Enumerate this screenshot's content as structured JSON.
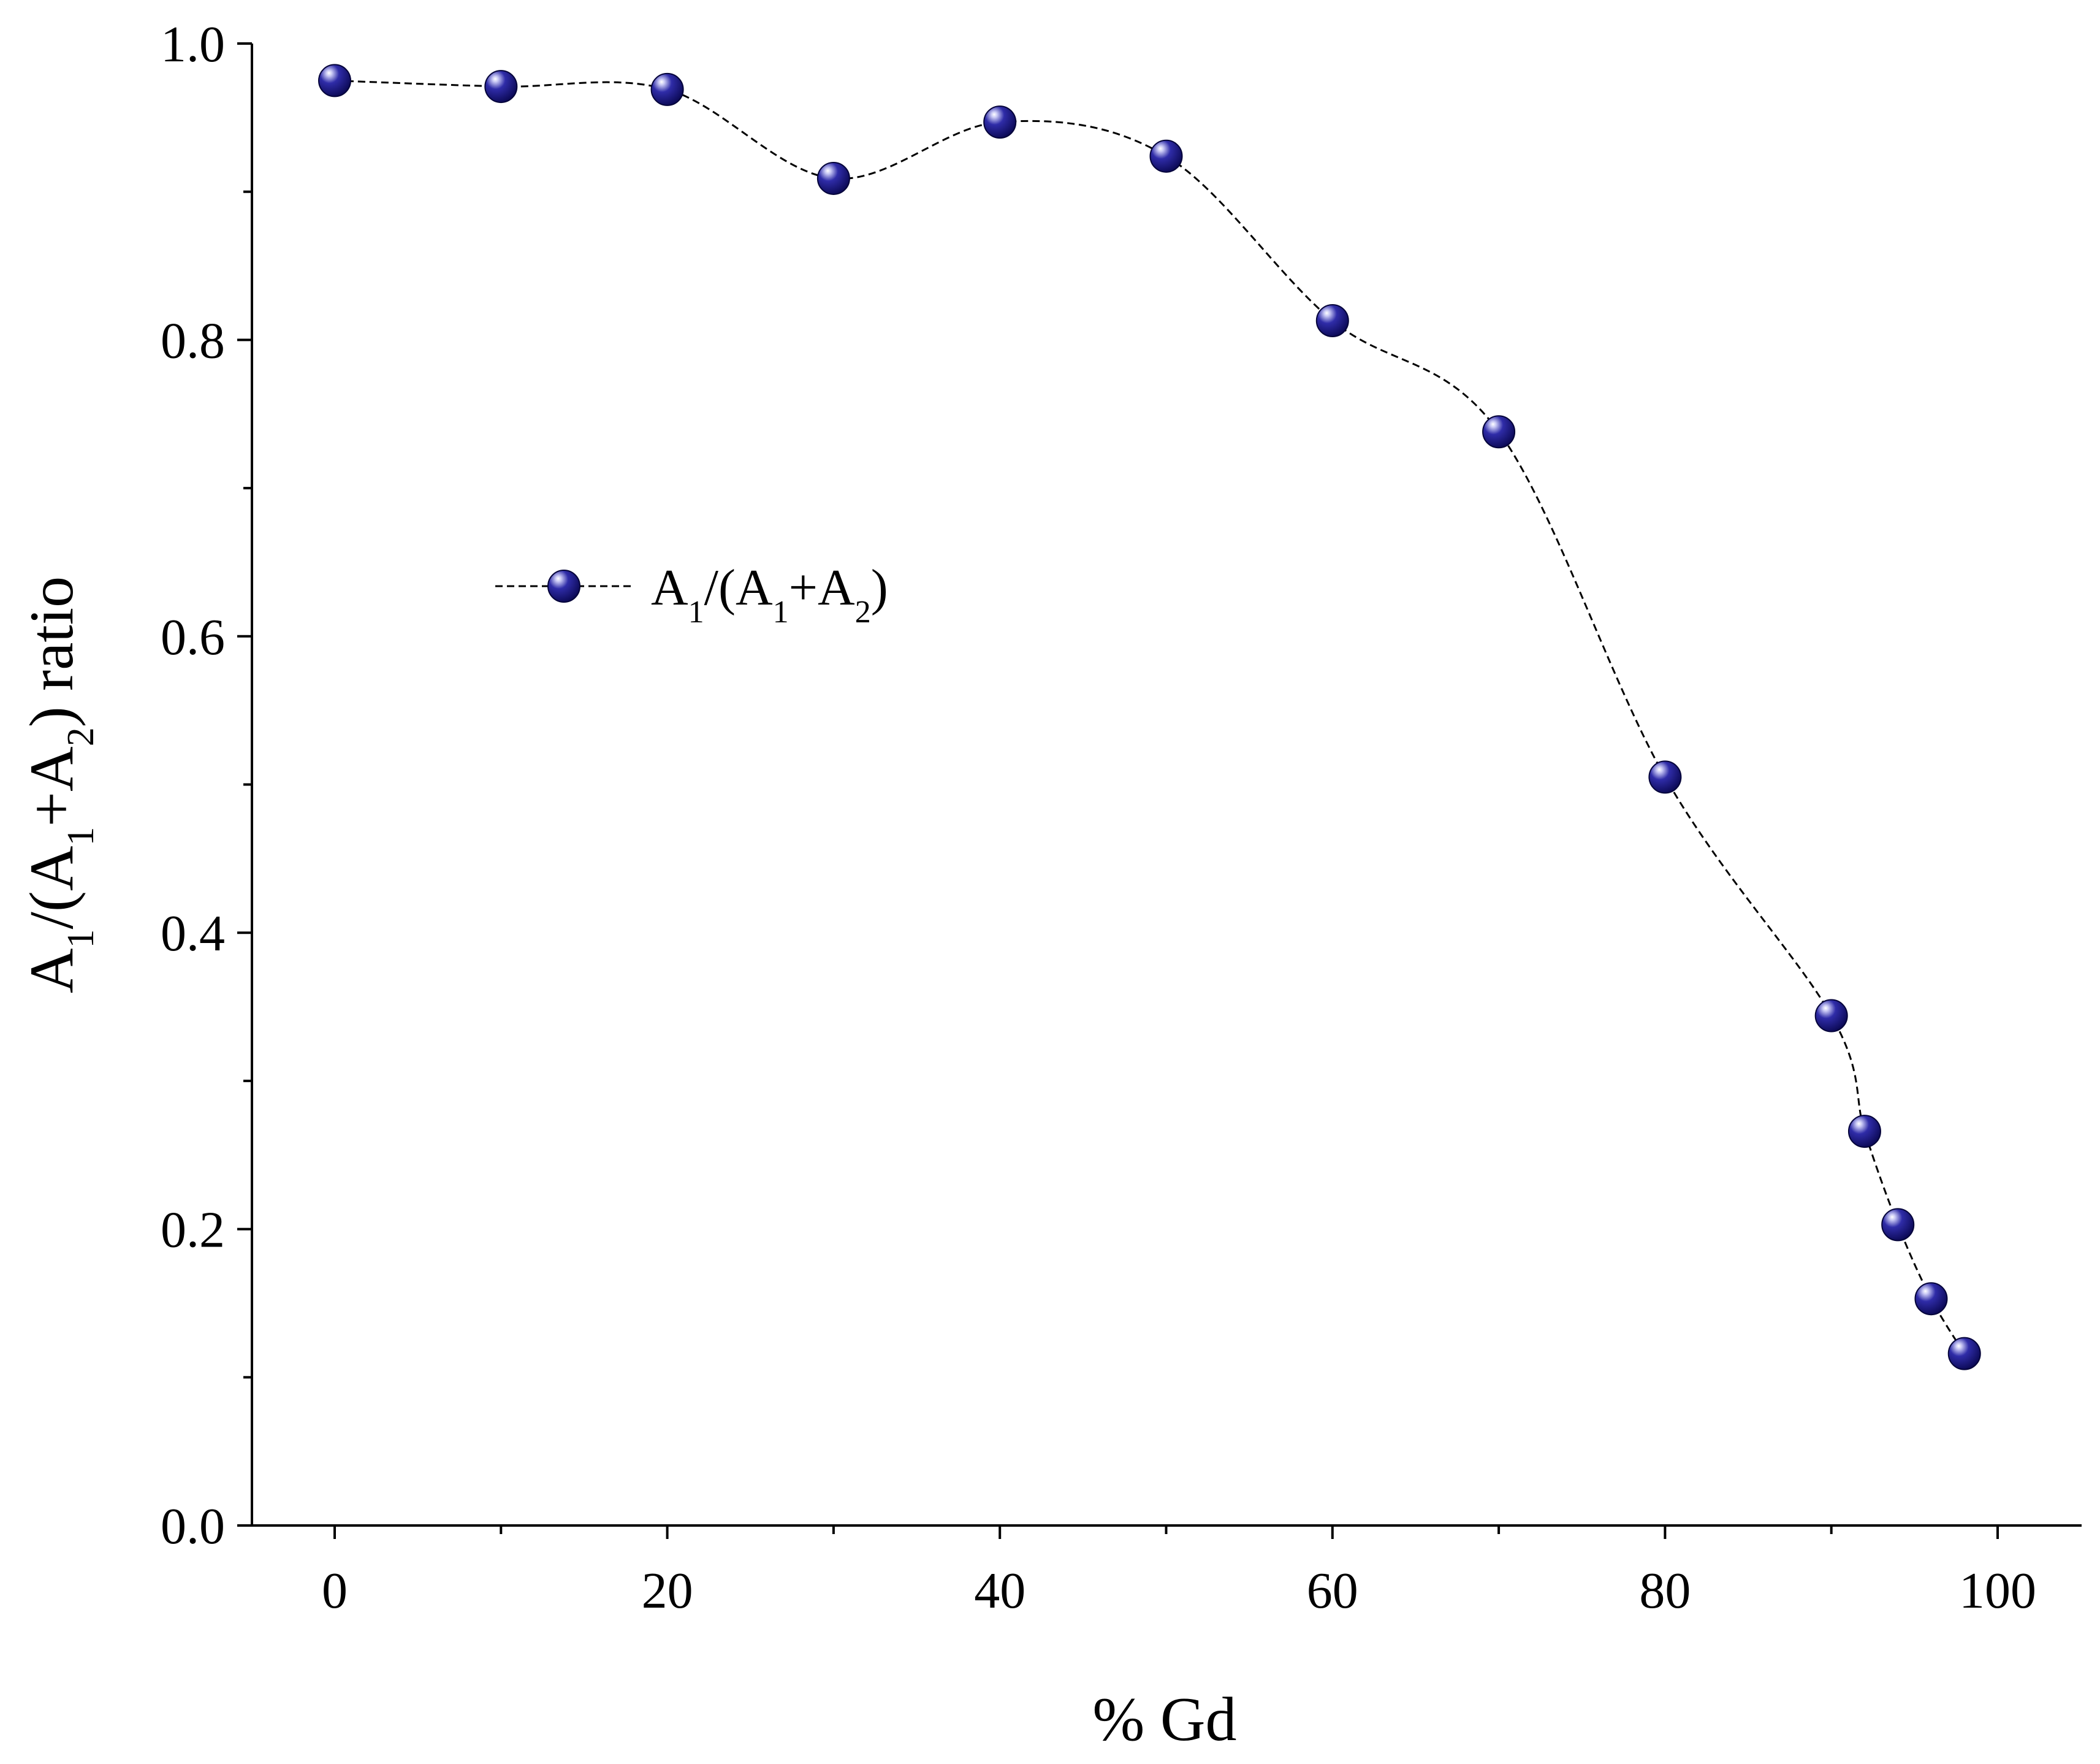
{
  "chart_data": {
    "type": "line",
    "title": "",
    "xlabel": "% Gd",
    "ylabel": {
      "parts": [
        "A",
        "1",
        "/(A",
        "1",
        "+A",
        "2",
        ") ratio"
      ]
    },
    "xlim": [
      -5,
      105
    ],
    "ylim": [
      0.0,
      1.0
    ],
    "x_ticks_major": [
      0,
      20,
      40,
      60,
      80,
      100
    ],
    "x_ticks_minor": [
      10,
      30,
      50,
      70,
      90
    ],
    "x_tick_labels": [
      "0",
      "20",
      "40",
      "60",
      "80",
      "100"
    ],
    "y_ticks_major": [
      0.0,
      0.2,
      0.4,
      0.6,
      0.8,
      1.0
    ],
    "y_ticks_minor": [
      0.1,
      0.3,
      0.5,
      0.7,
      0.9
    ],
    "y_tick_labels": [
      "0.0",
      "0.2",
      "0.4",
      "0.6",
      "0.8",
      "1.0"
    ],
    "grid": false,
    "legend_position": "upper-left-center",
    "series": [
      {
        "name": "A1/(A1+A2)",
        "legend_parts": [
          "A",
          "1",
          "/(A",
          "1",
          "+A",
          "2",
          ")"
        ],
        "marker": "sphere",
        "line_style": "dashed",
        "color": "#0d0b7a",
        "x": [
          0,
          10,
          20,
          30,
          40,
          50,
          60,
          70,
          80,
          90,
          92,
          94,
          96,
          98
        ],
        "y": [
          0.975,
          0.971,
          0.969,
          0.909,
          0.947,
          0.924,
          0.813,
          0.738,
          0.505,
          0.344,
          0.266,
          0.203,
          0.153,
          0.116
        ]
      }
    ]
  }
}
